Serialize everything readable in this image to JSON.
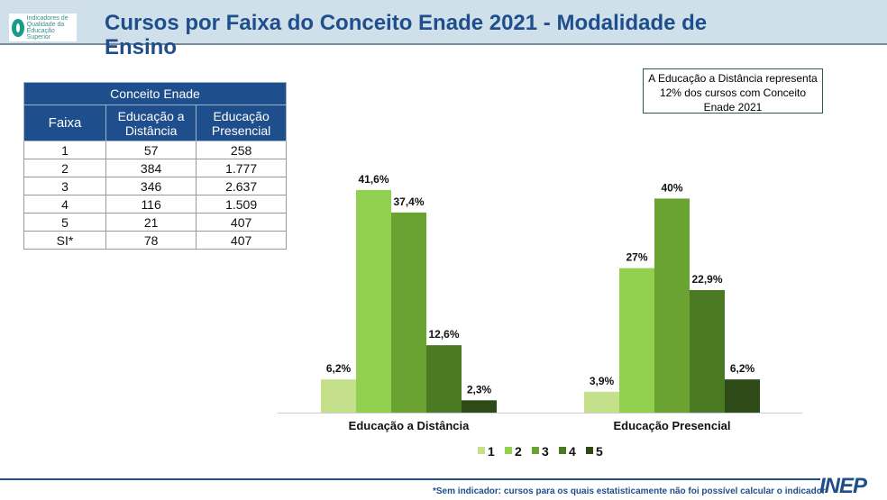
{
  "header": {
    "title": "Cursos por Faixa do Conceito Enade 2021 - Modalidade de Ensino",
    "logo_text": "Indicadores de Qualidade da Educação Superior"
  },
  "table": {
    "group_header": "Conceito Enade",
    "columns": [
      "Faixa",
      "Educação a Distância",
      "Educação Presencial"
    ],
    "rows": [
      [
        "1",
        "57",
        "258"
      ],
      [
        "2",
        "384",
        "1.777"
      ],
      [
        "3",
        "346",
        "2.637"
      ],
      [
        "4",
        "116",
        "1.509"
      ],
      [
        "5",
        "21",
        "407"
      ],
      [
        "SI*",
        "78",
        "407"
      ]
    ]
  },
  "note": "A  Educação a Distância representa 12% dos cursos com Conceito Enade 2021",
  "chart_data": {
    "type": "bar",
    "categories": [
      "Educação a Distância",
      "Educação Presencial"
    ],
    "series": [
      {
        "name": "1",
        "values": [
          6.2,
          3.9
        ],
        "labels": [
          "6,2%",
          "3,9%"
        ],
        "color": "#c5e08a"
      },
      {
        "name": "2",
        "values": [
          41.6,
          27
        ],
        "labels": [
          "41,6%",
          "27%"
        ],
        "color": "#92d050"
      },
      {
        "name": "3",
        "values": [
          37.4,
          40
        ],
        "labels": [
          "37,4%",
          "40%"
        ],
        "color": "#6aa332"
      },
      {
        "name": "4",
        "values": [
          12.6,
          22.9
        ],
        "labels": [
          "12,6%",
          "22,9%"
        ],
        "color": "#4a7a24"
      },
      {
        "name": "5",
        "values": [
          2.3,
          6.2
        ],
        "labels": [
          "2,3%",
          "6,2%"
        ],
        "color": "#2d4a17"
      }
    ],
    "legend": "bottom",
    "grid": false
  },
  "footer": {
    "note": "*Sem indicador: cursos para os quais estatisticamente não foi possível calcular o indicador",
    "brand": "inep"
  }
}
